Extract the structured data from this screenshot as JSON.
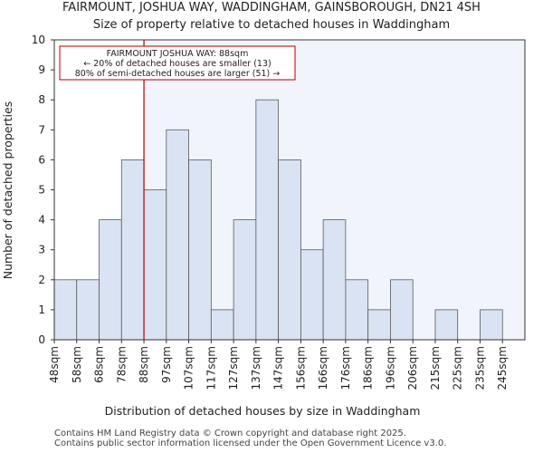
{
  "title": "FAIRMOUNT, JOSHUA WAY, WADDINGHAM, GAINSBOROUGH, DN21 4SH",
  "subtitle": "Size of property relative to detached houses in Waddingham",
  "footer": {
    "line1": "Contains HM Land Registry data © Crown copyright and database right 2025.",
    "line2": "Contains public sector information licensed under the Open Government Licence v3.0."
  },
  "colors": {
    "bar_fill": "#dae3f3",
    "bar_stroke": "#5a5a5a",
    "highlight_bg": "#f1f4fb",
    "marker_line": "#b00000",
    "annotation_border": "#b00000"
  },
  "chart_data": {
    "type": "bar",
    "title": "FAIRMOUNT, JOSHUA WAY, WADDINGHAM, GAINSBOROUGH, DN21 4SH",
    "subtitle": "Size of property relative to detached houses in Waddingham",
    "xlabel": "Distribution of detached houses by size in Waddingham",
    "ylabel": "Number of detached properties",
    "categories": [
      "48sqm",
      "58sqm",
      "68sqm",
      "78sqm",
      "88sqm",
      "97sqm",
      "107sqm",
      "117sqm",
      "127sqm",
      "137sqm",
      "147sqm",
      "156sqm",
      "166sqm",
      "176sqm",
      "186sqm",
      "196sqm",
      "206sqm",
      "215sqm",
      "225sqm",
      "235sqm",
      "245sqm"
    ],
    "values": [
      2,
      2,
      4,
      6,
      5,
      7,
      6,
      1,
      4,
      8,
      6,
      3,
      4,
      2,
      1,
      2,
      0,
      1,
      0,
      1,
      0
    ],
    "ylim": [
      0,
      10
    ],
    "yticks": [
      0,
      1,
      2,
      3,
      4,
      5,
      6,
      7,
      8,
      9,
      10
    ],
    "grid": false,
    "marker": {
      "category": "88sqm",
      "value_sqm": 88
    },
    "annotation": {
      "line1": "FAIRMOUNT JOSHUA WAY: 88sqm",
      "line2": "← 20% of detached houses are smaller (13)",
      "line3": "80% of semi-detached houses are larger (51) →"
    }
  }
}
